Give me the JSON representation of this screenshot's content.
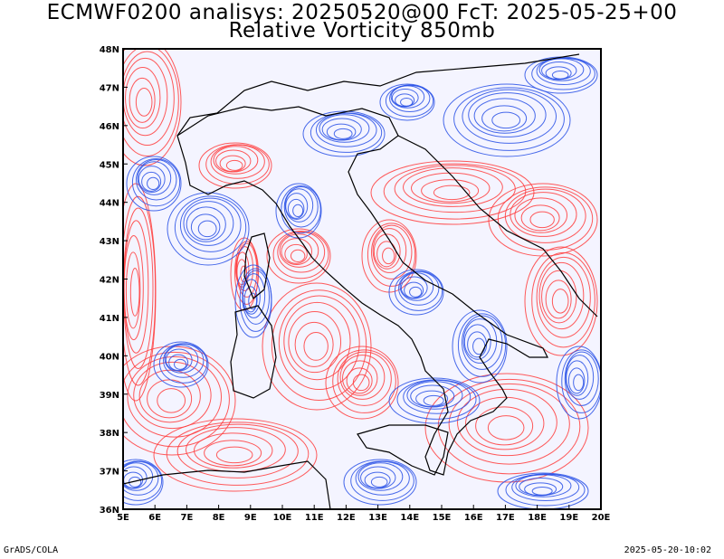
{
  "title_line1": "ECMWF0200 analisys: 20250520@00 FcT: 2025-05-25+00",
  "title_line2": "Relative Vorticity 850mb",
  "footer_left": "GrADS/COLA",
  "footer_right": "2025-05-20-10:02",
  "map": {
    "lon_range": [
      5,
      20
    ],
    "lat_range": [
      36,
      48
    ],
    "x_ticks": [
      "5E",
      "6E",
      "7E",
      "8E",
      "9E",
      "10E",
      "11E",
      "12E",
      "13E",
      "14E",
      "15E",
      "16E",
      "17E",
      "18E",
      "19E",
      "20E"
    ],
    "y_ticks": [
      "36N",
      "37N",
      "38N",
      "39N",
      "40N",
      "41N",
      "42N",
      "43N",
      "44N",
      "45N",
      "46N",
      "47N",
      "48N"
    ],
    "colors": {
      "positive_vorticity": "#ff3c3c",
      "negative_vorticity": "#2850e6",
      "coastline": "#000000"
    }
  }
}
